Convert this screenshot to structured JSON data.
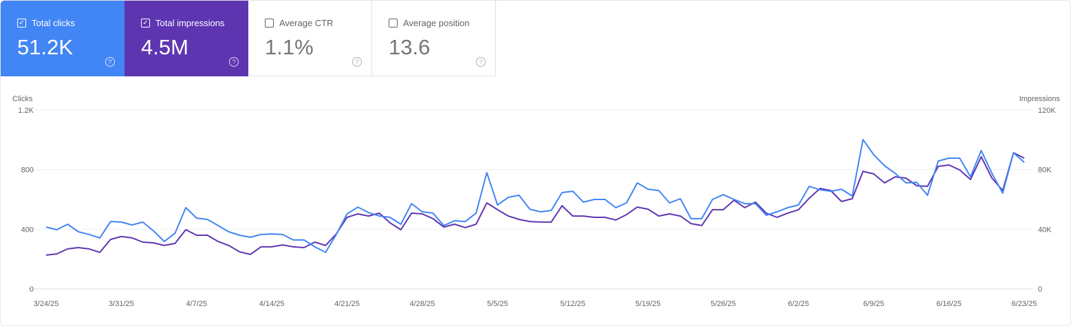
{
  "tiles": [
    {
      "label": "Total clicks",
      "value": "51.2K",
      "checked": true,
      "color": "#4285f4"
    },
    {
      "label": "Total impressions",
      "value": "4.5M",
      "checked": true,
      "color": "#5e35b1"
    },
    {
      "label": "Average CTR",
      "value": "1.1%",
      "checked": false,
      "color": "#ffffff"
    },
    {
      "label": "Average position",
      "value": "13.6",
      "checked": false,
      "color": "#ffffff"
    }
  ],
  "icons": {
    "checkbox": "check-icon",
    "help": "help-circle-icon"
  },
  "chart_data": {
    "type": "line",
    "ylabel_left": "Clicks",
    "ylabel_right": "Impressions",
    "ylim_left": [
      0,
      1200
    ],
    "ylim_right": [
      0,
      120000
    ],
    "yticks_left": [
      "0",
      "400",
      "800",
      "1.2K"
    ],
    "yticks_right": [
      "0",
      "40K",
      "80K",
      "120K"
    ],
    "xtick_labels": [
      "3/24/25",
      "3/31/25",
      "4/7/25",
      "4/14/25",
      "4/21/25",
      "4/28/25",
      "5/5/25",
      "5/12/25",
      "5/19/25",
      "5/26/25",
      "6/2/25",
      "6/9/25",
      "6/16/25",
      "6/23/25"
    ],
    "grid": true,
    "dates": [
      "3/24",
      "3/25",
      "3/26",
      "3/27",
      "3/28",
      "3/29",
      "3/30",
      "3/31",
      "4/1",
      "4/2",
      "4/3",
      "4/4",
      "4/5",
      "4/6",
      "4/7",
      "4/8",
      "4/9",
      "4/10",
      "4/11",
      "4/12",
      "4/13",
      "4/14",
      "4/15",
      "4/16",
      "4/17",
      "4/18",
      "4/19",
      "4/20",
      "4/21",
      "4/22",
      "4/23",
      "4/24",
      "4/25",
      "4/26",
      "4/27",
      "4/28",
      "4/29",
      "4/30",
      "5/1",
      "5/2",
      "5/3",
      "5/4",
      "5/5",
      "5/6",
      "5/7",
      "5/8",
      "5/9",
      "5/10",
      "5/11",
      "5/12",
      "5/13",
      "5/14",
      "5/15",
      "5/16",
      "5/17",
      "5/18",
      "5/19",
      "5/20",
      "5/21",
      "5/22",
      "5/23",
      "5/24",
      "5/25",
      "5/26",
      "5/27",
      "5/28",
      "5/29",
      "5/30",
      "5/31",
      "6/1",
      "6/2",
      "6/3",
      "6/4",
      "6/5",
      "6/6",
      "6/7",
      "6/8",
      "6/9",
      "6/10",
      "6/11",
      "6/12",
      "6/13",
      "6/14",
      "6/15",
      "6/16",
      "6/17",
      "6/18",
      "6/19",
      "6/20",
      "6/21",
      "6/22",
      "6/23"
    ],
    "series": [
      {
        "name": "Clicks",
        "axis": "left",
        "color": "#4285f4",
        "values": [
          415,
          397,
          434,
          383,
          365,
          342,
          452,
          448,
          429,
          448,
          388,
          318,
          374,
          545,
          475,
          466,
          425,
          383,
          360,
          346,
          365,
          369,
          365,
          328,
          328,
          282,
          245,
          365,
          503,
          549,
          512,
          489,
          480,
          434,
          572,
          517,
          508,
          425,
          457,
          452,
          508,
          780,
          563,
          614,
          628,
          535,
          517,
          526,
          646,
          655,
          582,
          600,
          600,
          545,
          577,
          711,
          669,
          660,
          577,
          605,
          471,
          471,
          600,
          632,
          600,
          572,
          572,
          494,
          517,
          545,
          563,
          688,
          665,
          655,
          669,
          623,
          1002,
          900,
          826,
          775,
          711,
          715,
          628,
          858,
          877,
          877,
          752,
          928,
          775,
          642,
          914,
          849
        ]
      },
      {
        "name": "Impressions",
        "axis": "right",
        "color": "#5e35b1",
        "values": [
          22600,
          23500,
          26800,
          27700,
          26800,
          24500,
          33200,
          35100,
          34200,
          31400,
          30900,
          29100,
          30500,
          39700,
          36000,
          36000,
          31800,
          29100,
          24900,
          23100,
          28200,
          28200,
          29500,
          28200,
          27700,
          31400,
          29100,
          36900,
          48000,
          50300,
          48900,
          50800,
          44300,
          39700,
          50800,
          50300,
          47100,
          41500,
          43400,
          41100,
          43400,
          57700,
          53100,
          48900,
          46600,
          45200,
          44800,
          44800,
          55800,
          48900,
          48900,
          48000,
          48000,
          46200,
          49800,
          54900,
          53500,
          48900,
          50300,
          48900,
          43800,
          42500,
          53100,
          53100,
          59500,
          54500,
          58200,
          50800,
          48000,
          50800,
          53100,
          60900,
          67400,
          66000,
          58600,
          60500,
          78900,
          77100,
          71100,
          75200,
          74300,
          69200,
          68800,
          82200,
          83100,
          79800,
          73400,
          88600,
          74300,
          66000,
          91400,
          87700
        ]
      }
    ]
  }
}
